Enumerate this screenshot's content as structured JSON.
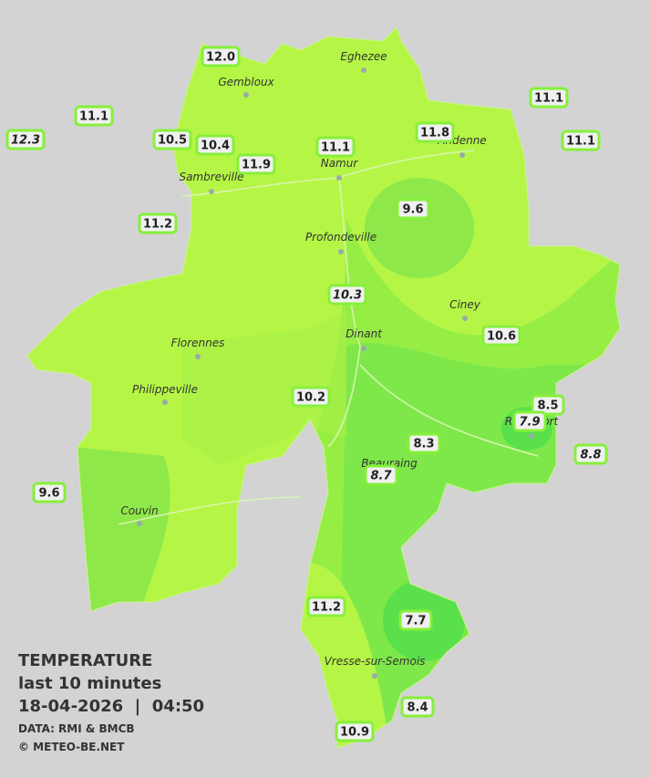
{
  "legend": {
    "title": "TEMPERATURE",
    "period": "last 10 minutes",
    "timestamp": "18-04-2026  |  04:50",
    "source": "DATA: RMI & BMCB",
    "copyright": "© METEO-BE.NET"
  },
  "cities": [
    {
      "name": "Eghezee"
    },
    {
      "name": "Gembloux"
    },
    {
      "name": "Andenne"
    },
    {
      "name": "Namur"
    },
    {
      "name": "Sambreville"
    },
    {
      "name": "Profondeville"
    },
    {
      "name": "Ciney"
    },
    {
      "name": "Dinant"
    },
    {
      "name": "Florennes"
    },
    {
      "name": "Philippeville"
    },
    {
      "name": "Beauraing"
    },
    {
      "name": "Rochefort"
    },
    {
      "name": "Couvin"
    },
    {
      "name": "Vresse-sur-Semois"
    }
  ],
  "stations": [
    {
      "value": "12.0",
      "italic": false
    },
    {
      "value": "11.1",
      "italic": false
    },
    {
      "value": "12.3",
      "italic": true
    },
    {
      "value": "10.5",
      "italic": false
    },
    {
      "value": "10.4",
      "italic": false
    },
    {
      "value": "11.9",
      "italic": false
    },
    {
      "value": "11.1",
      "italic": false
    },
    {
      "value": "11.8",
      "italic": false
    },
    {
      "value": "11.1",
      "italic": false
    },
    {
      "value": "11.1",
      "italic": false
    },
    {
      "value": "11.2",
      "italic": false
    },
    {
      "value": "9.6",
      "italic": false
    },
    {
      "value": "10.3",
      "italic": true
    },
    {
      "value": "10.6",
      "italic": false
    },
    {
      "value": "10.2",
      "italic": false
    },
    {
      "value": "8.5",
      "italic": false
    },
    {
      "value": "7.9",
      "italic": true
    },
    {
      "value": "8.3",
      "italic": false
    },
    {
      "value": "8.7",
      "italic": true
    },
    {
      "value": "8.8",
      "italic": true
    },
    {
      "value": "9.6",
      "italic": false
    },
    {
      "value": "11.2",
      "italic": false
    },
    {
      "value": "7.7",
      "italic": false
    },
    {
      "value": "8.4",
      "italic": false
    },
    {
      "value": "10.9",
      "italic": false
    }
  ]
}
